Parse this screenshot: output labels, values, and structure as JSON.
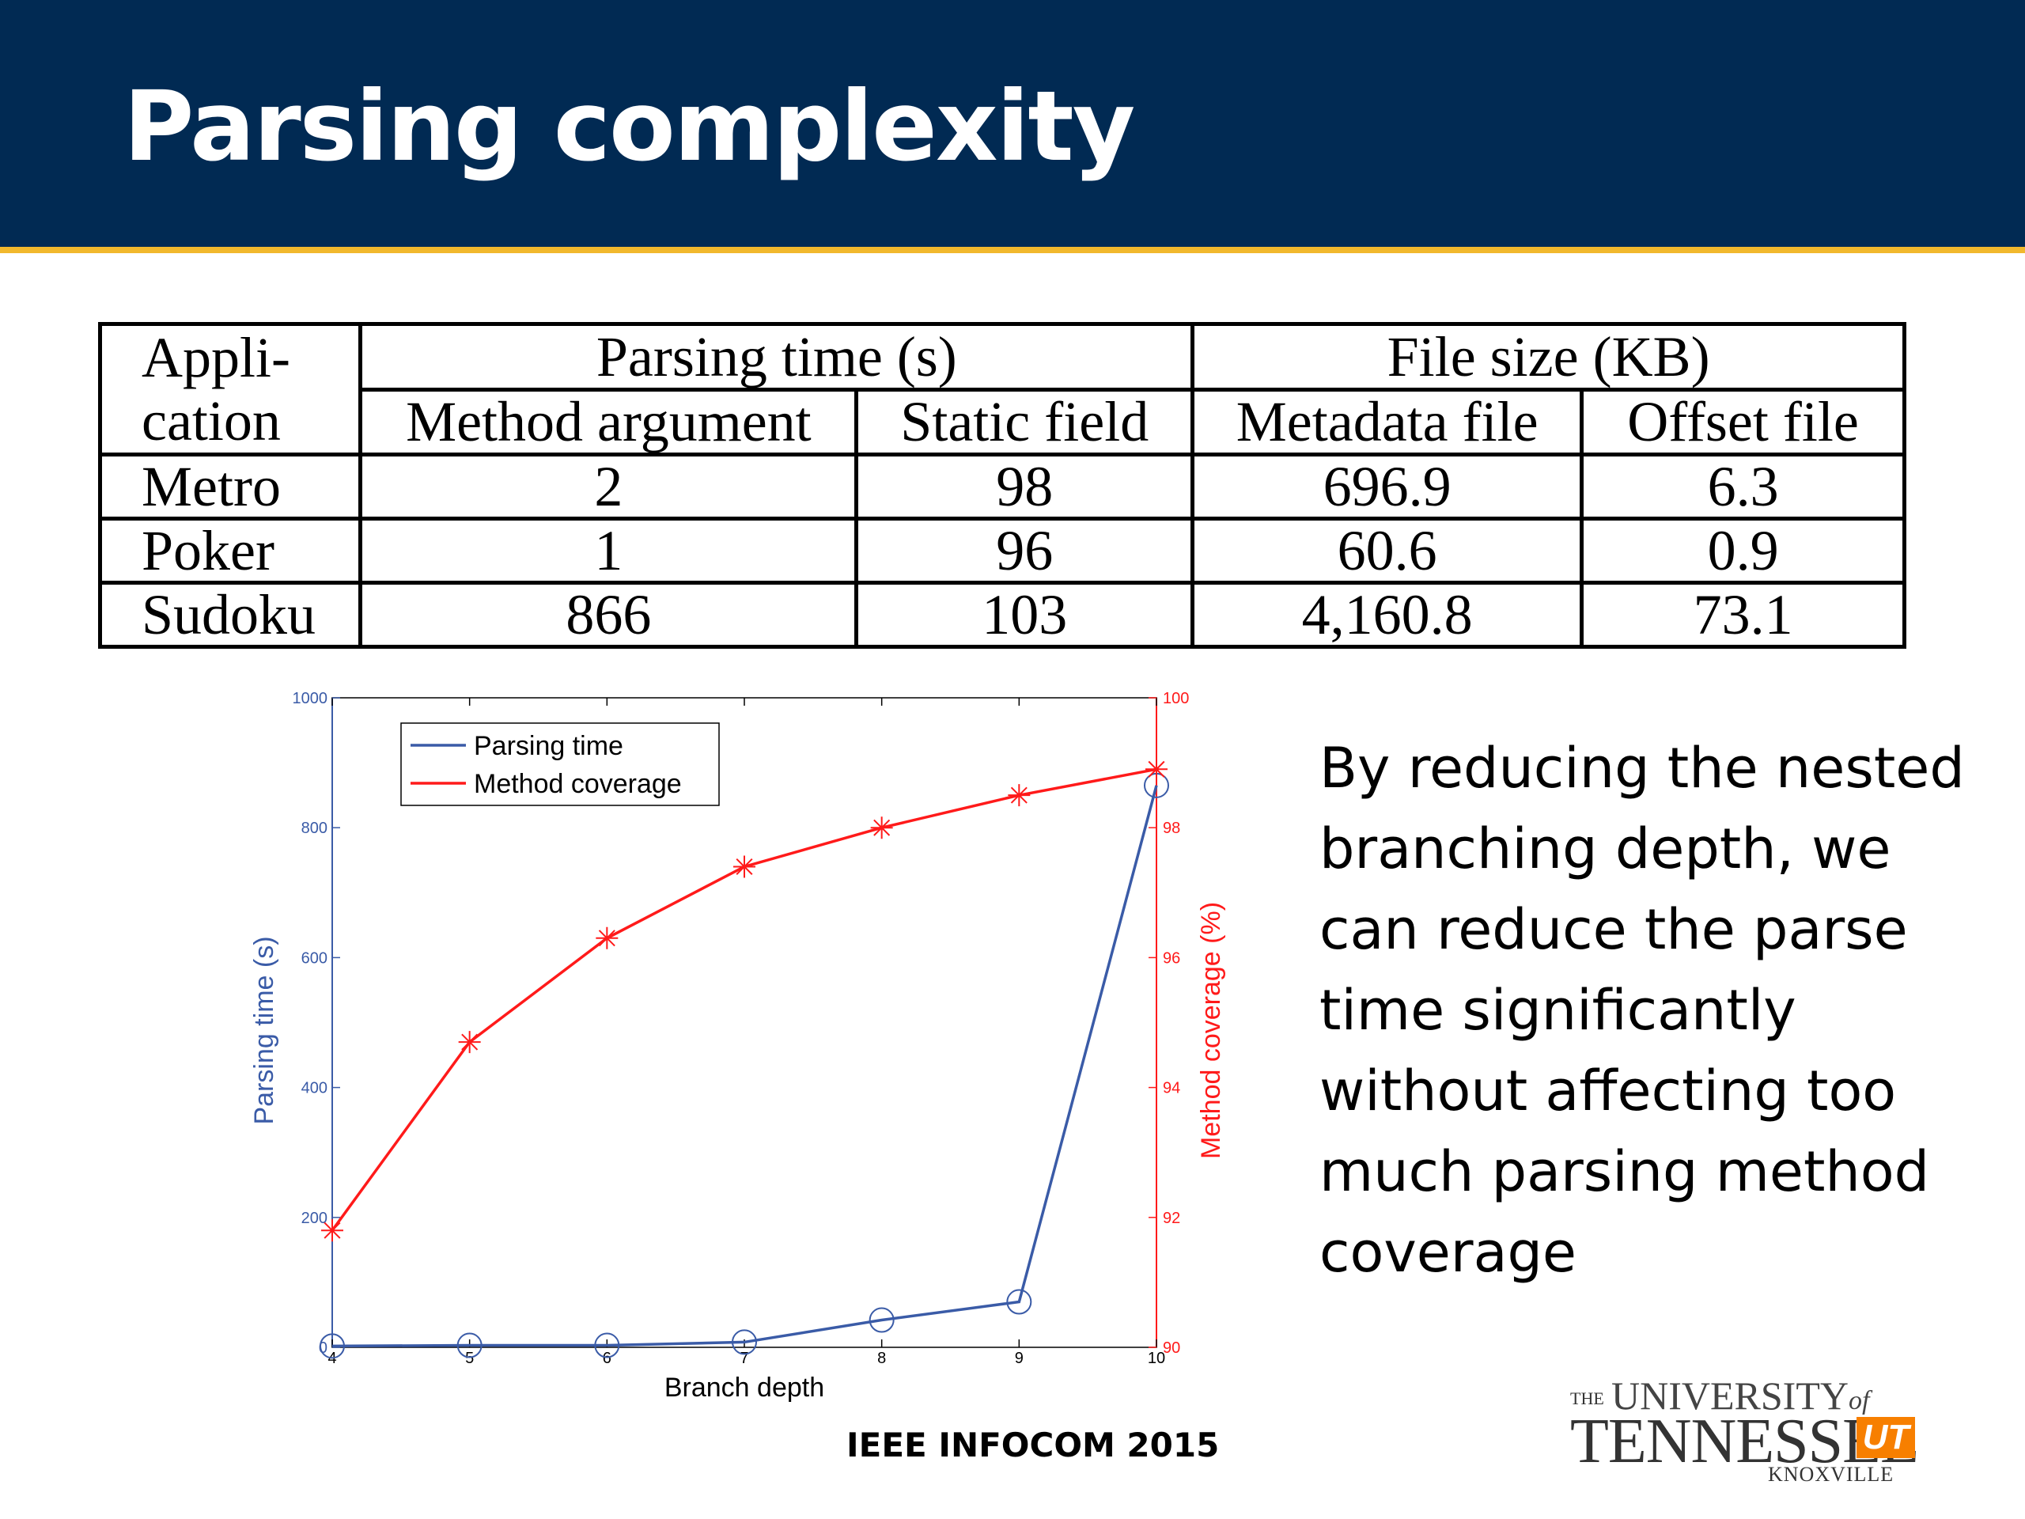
{
  "slide": {
    "title": "Parsing complexity",
    "header_color": "#012a53",
    "accent_color": "#f1b82d",
    "side_text": "By reducing the nested branching depth, we can reduce the parse time significantly without affecting too much parsing method coverage",
    "footer": "IEEE INFOCOM 2015"
  },
  "logo": {
    "the": "THE",
    "university": "UNIVERSITY",
    "of": "of",
    "tennessee": "TENNESSEE",
    "ut": "UT",
    "knoxville": "KNOXVILLE"
  },
  "table": {
    "col_app_line1": "Appli-",
    "col_app_line2": "cation",
    "group_parsing": "Parsing time (s)",
    "group_filesize": "File size (KB)",
    "sub_method_argument": "Method argument",
    "sub_static_field": "Static field",
    "sub_metadata_file": "Metadata file",
    "sub_offset_file": "Offset file",
    "rows": [
      {
        "app": "Metro",
        "method_argument": "2",
        "static_field": "98",
        "metadata_file": "696.9",
        "offset_file": "6.3"
      },
      {
        "app": "Poker",
        "method_argument": "1",
        "static_field": "96",
        "metadata_file": "60.6",
        "offset_file": "0.9"
      },
      {
        "app": "Sudoku",
        "method_argument": "866",
        "static_field": "103",
        "metadata_file": "4,160.8",
        "offset_file": "73.1"
      }
    ]
  },
  "chart_data": {
    "type": "line",
    "xlabel": "Branch depth",
    "ylabel_left": "Parsing time (s)",
    "ylabel_right": "Method coverage (%)",
    "x": [
      4,
      5,
      6,
      7,
      8,
      9,
      10
    ],
    "xlim": [
      4,
      10
    ],
    "ylim_left": [
      0,
      1000
    ],
    "ylim_right": [
      90,
      100
    ],
    "yticks_left": [
      0,
      200,
      400,
      600,
      800,
      1000
    ],
    "yticks_right": [
      90,
      92,
      94,
      96,
      98,
      100
    ],
    "legend_position": "top-left",
    "series": [
      {
        "name": "Parsing time",
        "axis": "left",
        "color": "#3a5ba7",
        "marker": "circle",
        "values": [
          2,
          3,
          3,
          8,
          42,
          70,
          865
        ]
      },
      {
        "name": "Method coverage",
        "axis": "right",
        "color": "#ff1a1a",
        "marker": "asterisk",
        "values": [
          91.8,
          94.7,
          96.3,
          97.4,
          98.0,
          98.5,
          98.9
        ]
      }
    ]
  }
}
